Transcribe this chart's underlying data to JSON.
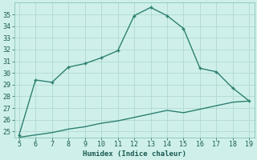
{
  "xlabel": "Humidex (Indice chaleur)",
  "x": [
    5,
    6,
    7,
    8,
    9,
    10,
    11,
    12,
    13,
    14,
    15,
    16,
    17,
    18,
    19
  ],
  "y_main": [
    24.7,
    29.4,
    29.2,
    30.5,
    30.8,
    31.3,
    31.9,
    34.9,
    35.6,
    34.9,
    33.8,
    30.4,
    30.1,
    28.7,
    27.6
  ],
  "y_base": [
    24.5,
    24.7,
    24.9,
    25.2,
    25.4,
    25.7,
    25.9,
    26.2,
    26.5,
    26.8,
    26.6,
    26.9,
    27.2,
    27.5,
    27.6
  ],
  "line_color": "#2d7f72",
  "bg_color": "#cff0ea",
  "grid_color": "#b0d8d2",
  "ylim": [
    24.5,
    36.0
  ],
  "xlim": [
    4.7,
    19.3
  ],
  "yticks": [
    25,
    26,
    27,
    28,
    29,
    30,
    31,
    32,
    33,
    34,
    35
  ],
  "xticks": [
    5,
    6,
    7,
    8,
    9,
    10,
    11,
    12,
    13,
    14,
    15,
    16,
    17,
    18,
    19
  ],
  "xlabel_fontsize": 6.5,
  "tick_fontsize": 6,
  "linewidth": 1.0,
  "marker_size": 3.5
}
